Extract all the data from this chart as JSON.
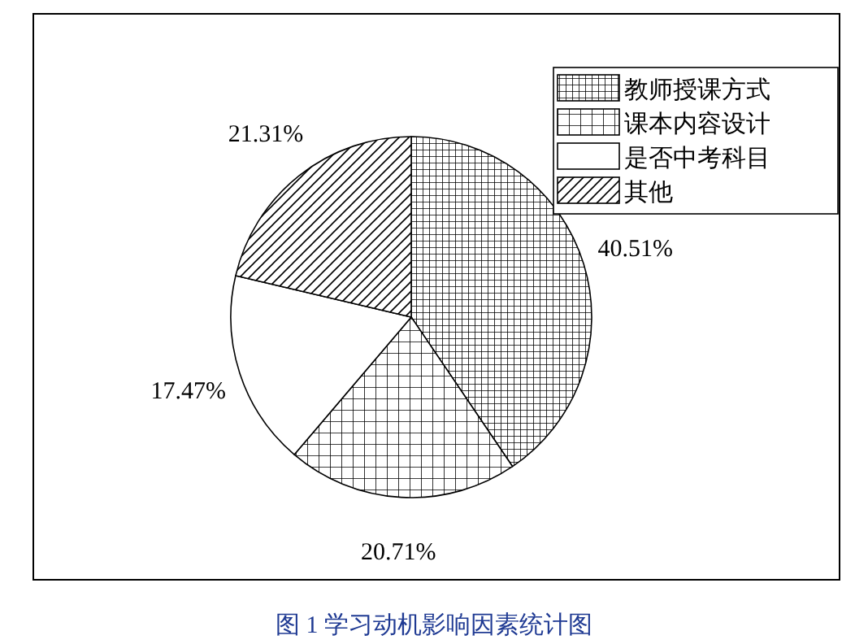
{
  "chart_data": {
    "type": "pie",
    "title": "图 1  学习动机影响因素统计图",
    "categories": [
      "教师授课方式",
      "课本内容设计",
      "是否中考科目",
      "其他"
    ],
    "values": [
      40.51,
      20.71,
      17.47,
      21.31
    ],
    "value_labels": [
      "40.51%",
      "20.71%",
      "17.47%",
      "21.31%"
    ],
    "colors": [
      "#000000",
      "#000000",
      "#000000",
      "#000000"
    ],
    "legend": "top right"
  }
}
